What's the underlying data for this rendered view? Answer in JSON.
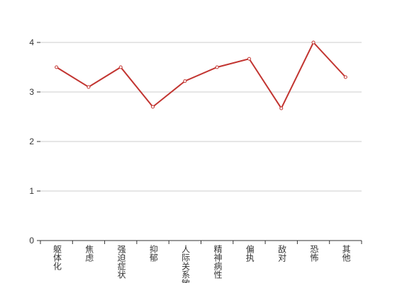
{
  "chart_data": {
    "type": "line",
    "categories": [
      "躯体化",
      "焦虑",
      "强迫症状",
      "抑郁",
      "人际关系敏感",
      "精神病性",
      "偏执",
      "敌对",
      "恐怖",
      "其他"
    ],
    "series": [
      {
        "name": "",
        "color": "#c23531",
        "values": [
          3.5,
          3.1,
          3.5,
          2.7,
          3.22,
          3.5,
          3.67,
          2.67,
          4.0,
          3.3
        ]
      }
    ],
    "ylim": [
      0,
      4
    ],
    "yticks": [
      0,
      1,
      2,
      3,
      4
    ],
    "grid": true
  }
}
